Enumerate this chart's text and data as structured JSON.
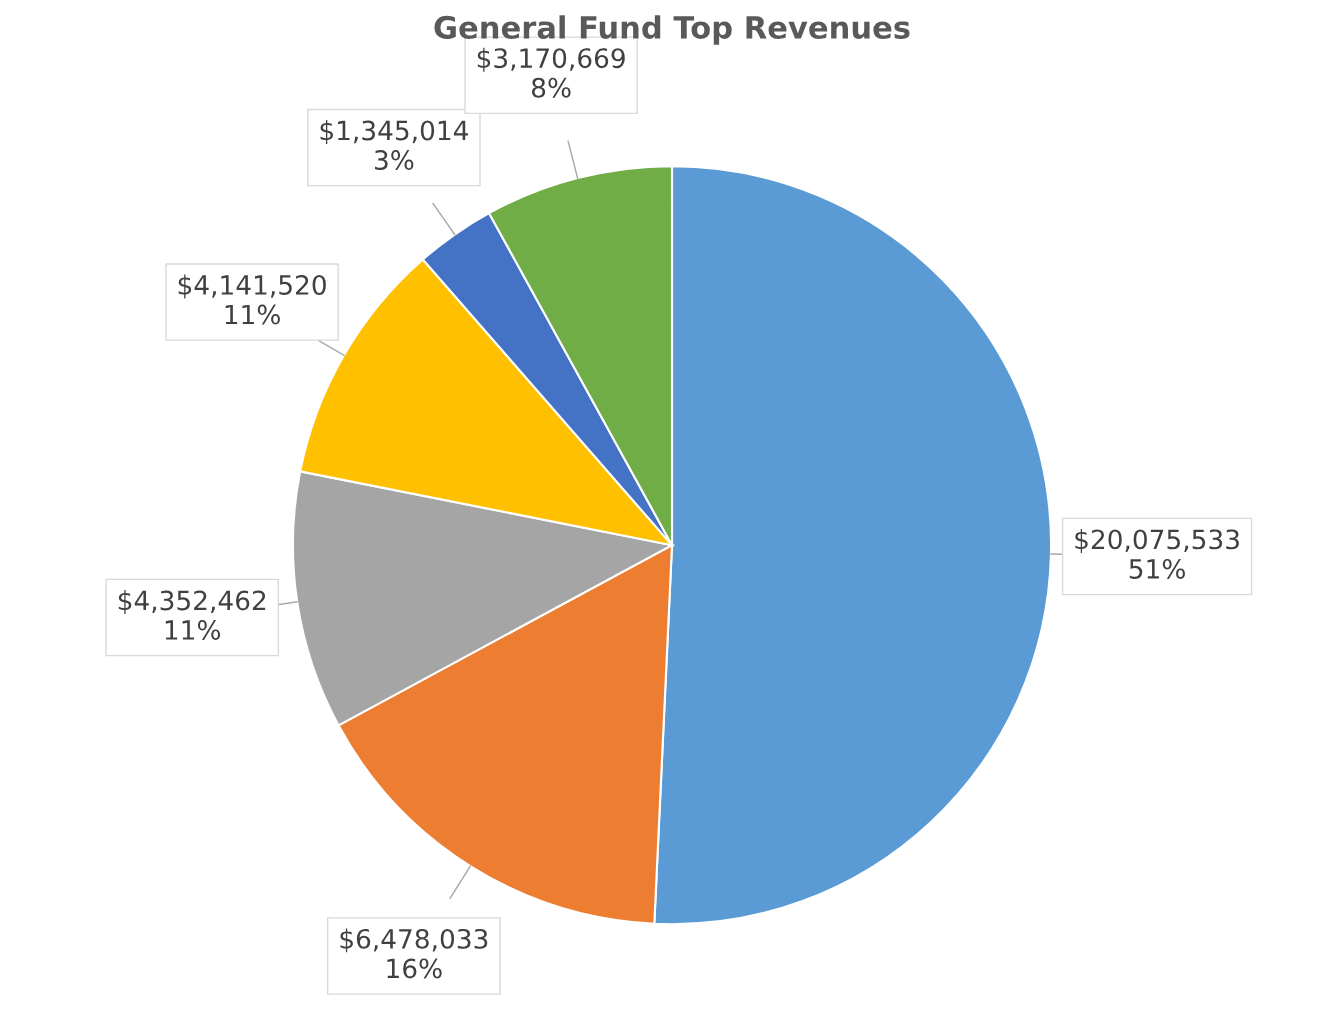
{
  "chart_data": {
    "type": "pie",
    "title": "General Fund Top Revenues",
    "categories": [
      null,
      null,
      null,
      null,
      null,
      null
    ],
    "values": [
      20075533,
      6478033,
      4352462,
      4141520,
      1345014,
      3170669
    ],
    "colors": [
      "#5b9bd5",
      "#ed7d31",
      "#a5a5a5",
      "#ffc000",
      "#4472c4",
      "#70ad47"
    ],
    "value_labels": [
      "$20,075,533\n51%",
      "$6,478,033\n16%",
      "$4,352,462\n11%",
      "$4,141,520\n11%",
      "$1,345,014\n3%",
      "$3,170,669\n8%"
    ],
    "legend": false
  }
}
